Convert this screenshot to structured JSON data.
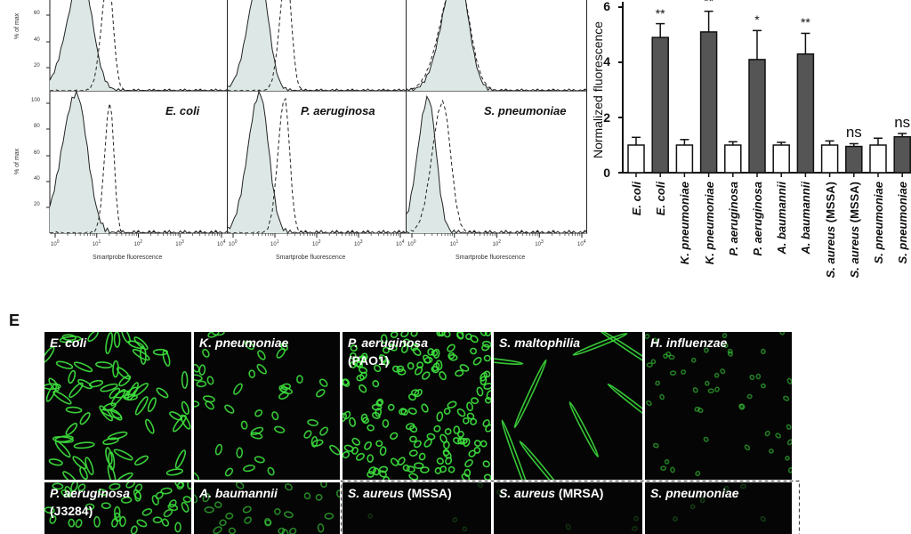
{
  "flow": {
    "y_axis_title": "% of max",
    "x_axis_title": "Smartprobe fluorescence",
    "panels_bottom": [
      {
        "label": "E. coli"
      },
      {
        "label": "P. aeruginosa"
      },
      {
        "label": "S. pneumoniae"
      }
    ],
    "y_ticks_top": [
      "60",
      "40",
      "20"
    ],
    "y_ticks_bottom": [
      "100",
      "80",
      "60",
      "40",
      "20"
    ],
    "x_ticks": [
      "10",
      "10",
      "10",
      "10",
      "10"
    ],
    "x_tick_exps": [
      "0",
      "1",
      "2",
      "3",
      "4"
    ]
  },
  "chart_data": {
    "type": "bar",
    "ylabel": "Normalized fluorescence",
    "ylim": [
      0,
      6
    ],
    "y_ticks": [
      "0",
      "2",
      "4",
      "6"
    ],
    "categories": [
      "E. coli",
      "E. coli",
      "K. pneumoniae",
      "K. pneumoniae",
      "P. aeruginosa",
      "P. aeruginosa",
      "A. baumannii",
      "A. baumannii",
      "S. aureus (MSSA)",
      "S. aureus (MSSA)",
      "S. pneumoniae",
      "S. pneumoniae"
    ],
    "values": [
      1.0,
      4.9,
      1.0,
      5.1,
      1.0,
      4.1,
      1.0,
      4.3,
      1.0,
      0.95,
      1.0,
      1.3
    ],
    "errors": [
      0.28,
      0.5,
      0.2,
      0.75,
      0.12,
      1.05,
      0.1,
      0.75,
      0.15,
      0.1,
      0.25,
      0.12
    ],
    "fill": [
      "white",
      "gray",
      "white",
      "gray",
      "white",
      "gray",
      "white",
      "gray",
      "white",
      "gray",
      "white",
      "gray"
    ],
    "significance": [
      "",
      "**",
      "",
      "**",
      "",
      "*",
      "",
      "**",
      "",
      "ns",
      "",
      "ns"
    ]
  },
  "panel_e": {
    "letter": "E",
    "row1": [
      {
        "label": "E. coli",
        "sub": ""
      },
      {
        "label": "K. pneumoniae",
        "sub": ""
      },
      {
        "label": "P. aeruginosa",
        "sub": "(PAO1)"
      },
      {
        "label": "S. maltophilia",
        "sub": ""
      },
      {
        "label": "H. influenzae",
        "sub": ""
      }
    ],
    "row2": [
      {
        "label": "P. aeruginosa",
        "sub": "(J3284)"
      },
      {
        "label": "A. baumannii",
        "sub": ""
      },
      {
        "label": "S. aureus",
        "suffix": " (MSSA)"
      },
      {
        "label": "S. aureus",
        "suffix": " (MRSA)"
      },
      {
        "label": "S. pneumoniae",
        "suffix": ""
      }
    ]
  },
  "colors": {
    "bar_gray": "#555555",
    "histogram_fill": "#dde8e6",
    "fluor_green": "#3cdc3c"
  }
}
